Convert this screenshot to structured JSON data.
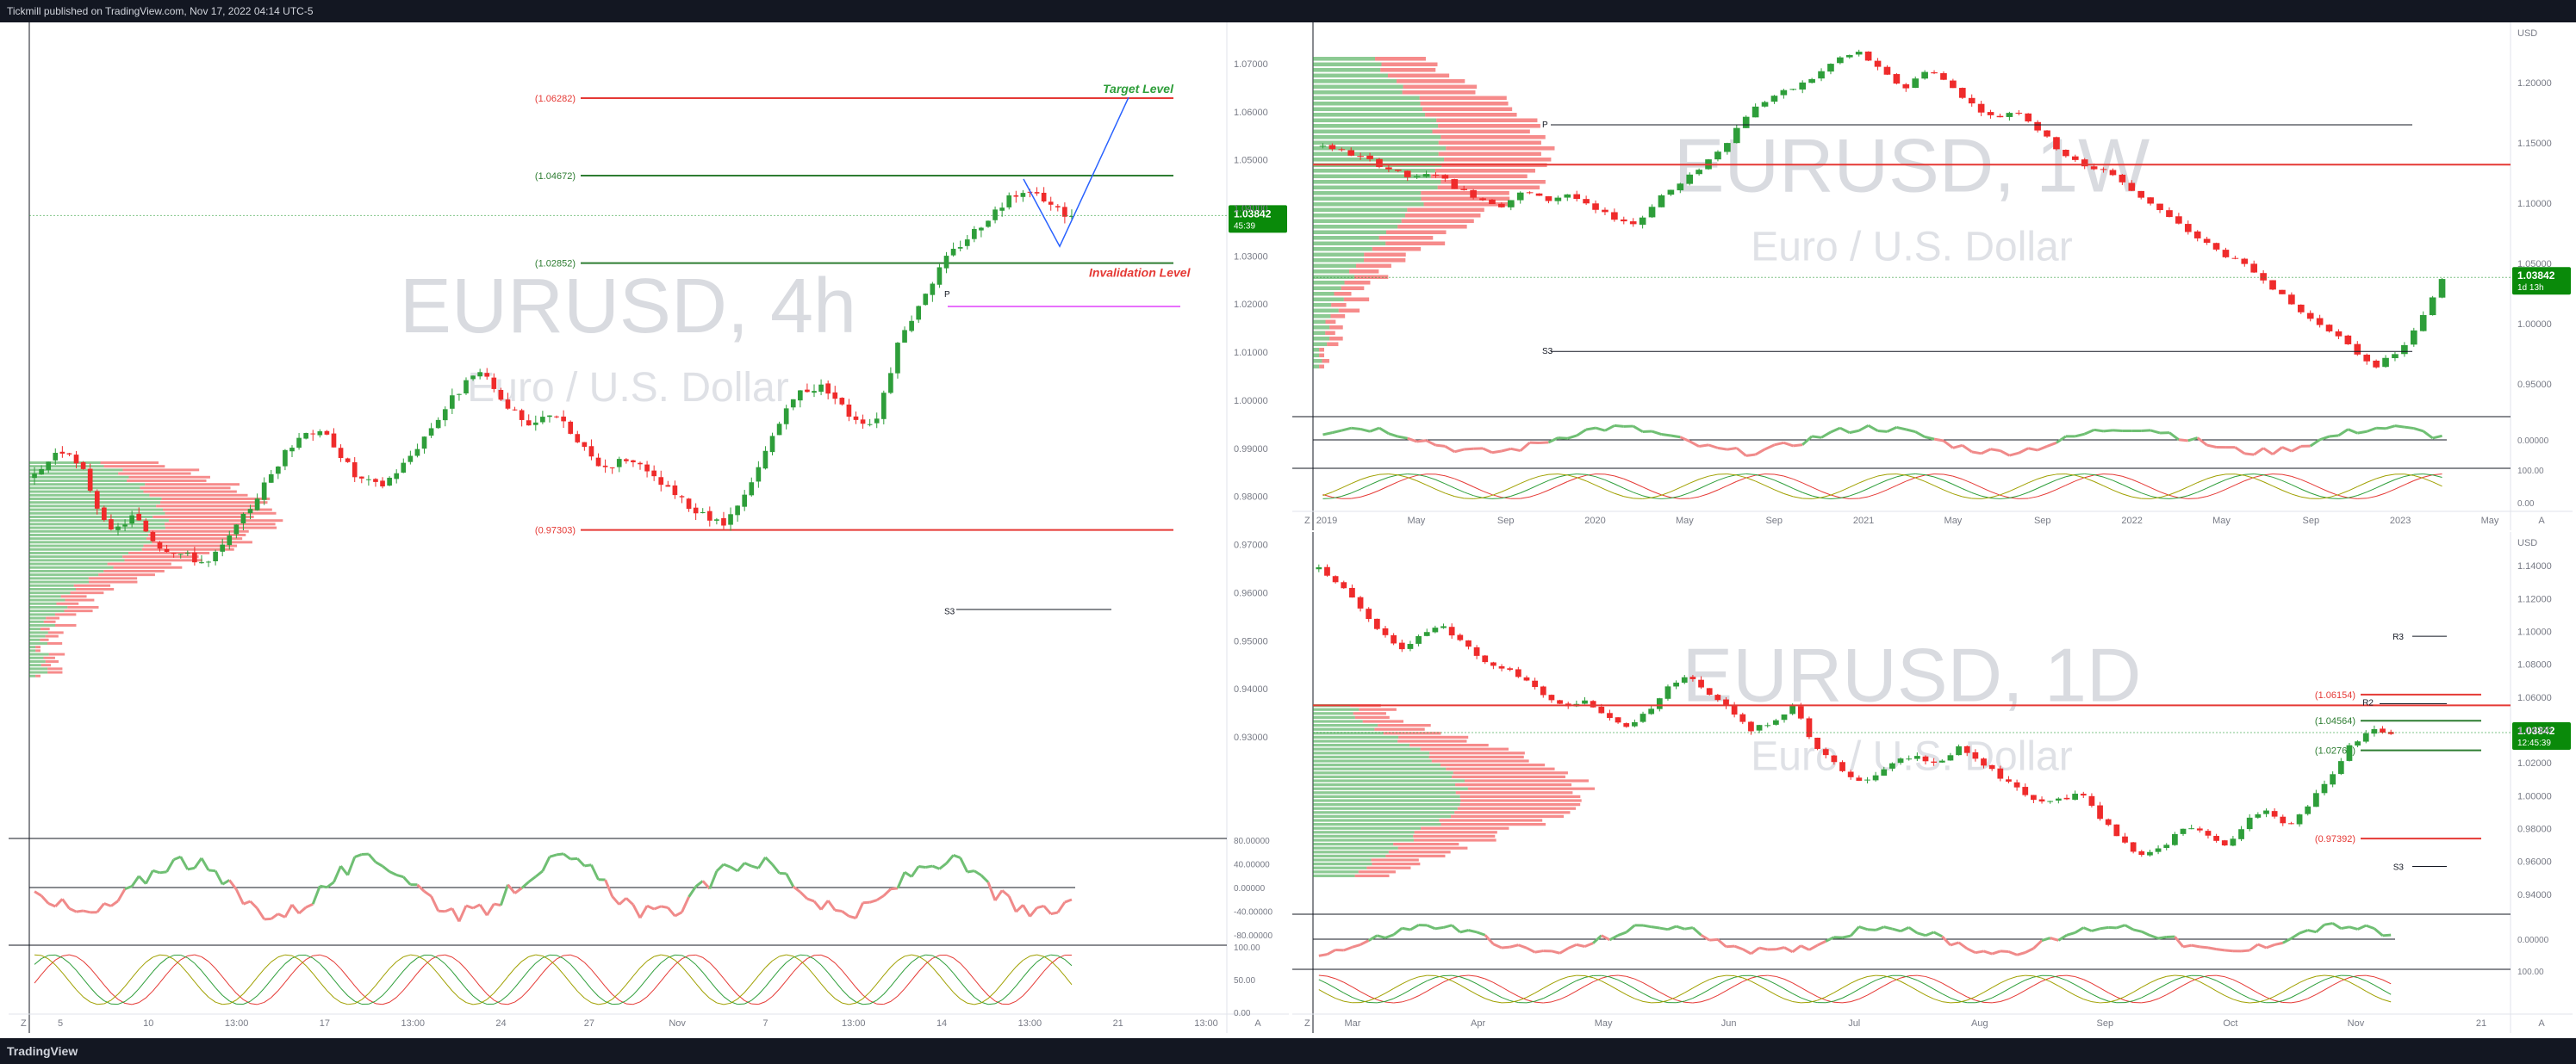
{
  "header": {
    "publisher": "Tickmill published on TradingView.com, Nov 17, 2022 04:14 UTC-5"
  },
  "footer": {
    "logo": "TradingView"
  },
  "colors": {
    "up": "#2e9e3a",
    "down": "#ef2b2b",
    "red_line": "#e53935",
    "green_line": "#2e7d32",
    "blue_path": "#2962ff",
    "badge": "#0a8a0a",
    "pivot": "#131722"
  },
  "charts": {
    "h4": {
      "watermark": "EURUSD, 4h",
      "subtitle": "Euro / U.S. Dollar",
      "price_badge": "1.03842",
      "countdown": "45:39",
      "target_label": "Target Level",
      "invalidation_label": "Invalidation Level",
      "pivot_p": "P",
      "pivot_s3": "S3",
      "price_scale": [
        "1.07000",
        "1.06000",
        "1.05000",
        "1.04000",
        "1.03000",
        "1.02000",
        "1.01000",
        "1.00000",
        "0.99000",
        "0.98000",
        "0.97000",
        "0.96000",
        "0.95000",
        "0.94000",
        "0.93000"
      ],
      "osc_scale": [
        "80.00000",
        "40.00000",
        "0.00000",
        "-40.00000",
        "-80.00000"
      ],
      "stoch_scale": [
        "100.00",
        "50.00",
        "0.00"
      ],
      "time_labels": [
        "5",
        "10",
        "13:00",
        "17",
        "13:00",
        "24",
        "27",
        "Nov",
        "7",
        "13:00",
        "14",
        "13:00",
        "21",
        "13:00"
      ],
      "axis_corner": "A",
      "z_button": "Z"
    },
    "w1": {
      "watermark": "EURUSD, 1W",
      "subtitle": "Euro / U.S. Dollar",
      "currency": "USD",
      "price_badge": "1.03842",
      "countdown": "1d 13h",
      "pivot_p": "P",
      "pivot_s3": "S3",
      "price_scale": [
        "1.20000",
        "1.15000",
        "1.10000",
        "1.05000",
        "1.00000",
        "0.95000"
      ],
      "osc_scale": [
        "0.00000"
      ],
      "stoch_scale": [
        "100.00",
        "0.00"
      ],
      "time_labels": [
        "2019",
        "May",
        "Sep",
        "2020",
        "May",
        "Sep",
        "2021",
        "May",
        "Sep",
        "2022",
        "May",
        "Sep",
        "2023",
        "May"
      ],
      "axis_corner": "A",
      "z_button": "Z"
    },
    "d1": {
      "watermark": "EURUSD, 1D",
      "subtitle": "Euro / U.S. Dollar",
      "currency": "USD",
      "price_badge": "1.03842",
      "countdown": "12:45:39",
      "pivot_r3": "R3",
      "pivot_r2": "R2",
      "pivot_s3": "S3",
      "price_scale": [
        "1.14000",
        "1.12000",
        "1.10000",
        "1.08000",
        "1.06000",
        "1.04000",
        "1.02000",
        "1.00000",
        "0.98000",
        "0.96000",
        "0.94000"
      ],
      "osc_scale": [
        "0.00000"
      ],
      "stoch_scale": [
        "100.00"
      ],
      "time_labels": [
        "Mar",
        "Apr",
        "May",
        "Jun",
        "Jul",
        "Aug",
        "Sep",
        "Oct",
        "Nov",
        "21"
      ],
      "axis_corner": "A",
      "z_button": "Z"
    }
  },
  "chart_data": [
    {
      "type": "candlestick",
      "title": "EURUSD, 4h",
      "ylim": [
        0.93,
        1.075
      ],
      "last_price": 1.03842,
      "levels": [
        {
          "label": "(1.06282)",
          "value": 1.06282,
          "color": "#e53935"
        },
        {
          "label": "(1.04672)",
          "value": 1.04672,
          "color": "#2e7d32"
        },
        {
          "label": "(1.02852)",
          "value": 1.02852,
          "color": "#2e7d32"
        },
        {
          "label": "(0.97303)",
          "value": 0.97303,
          "color": "#e53935"
        }
      ],
      "close_path": [
        0.984,
        0.99,
        0.985,
        0.972,
        0.976,
        0.97,
        0.968,
        0.966,
        0.972,
        0.98,
        0.988,
        0.994,
        0.992,
        0.984,
        0.982,
        0.987,
        0.994,
        1.001,
        1.006,
        1.0,
        0.994,
        0.998,
        0.991,
        0.986,
        0.988,
        0.984,
        0.98,
        0.976,
        0.974,
        0.982,
        0.994,
        1.002,
        1.003,
        0.997,
        0.995,
        1.012,
        1.022,
        1.03,
        1.035,
        1.04,
        1.044,
        1.041,
        1.038
      ]
    },
    {
      "type": "candlestick",
      "title": "EURUSD, 1W",
      "ylim": [
        0.93,
        1.24
      ],
      "last_price": 1.03842,
      "close_path": [
        1.148,
        1.142,
        1.136,
        1.128,
        1.12,
        1.125,
        1.112,
        1.104,
        1.098,
        1.11,
        1.102,
        1.108,
        1.095,
        1.088,
        1.082,
        1.105,
        1.116,
        1.132,
        1.15,
        1.175,
        1.188,
        1.195,
        1.205,
        1.22,
        1.225,
        1.208,
        1.195,
        1.212,
        1.198,
        1.182,
        1.17,
        1.178,
        1.16,
        1.142,
        1.13,
        1.128,
        1.112,
        1.1,
        1.085,
        1.072,
        1.06,
        1.05,
        1.038,
        1.02,
        1.005,
        0.995,
        0.978,
        0.965,
        0.975,
        1.0,
        1.038
      ]
    },
    {
      "type": "candlestick",
      "title": "EURUSD, 1D",
      "ylim": [
        0.93,
        1.15
      ],
      "last_price": 1.03842,
      "levels": [
        {
          "label": "(1.06154)",
          "value": 1.06154,
          "color": "#e53935"
        },
        {
          "label": "(1.04564)",
          "value": 1.04564,
          "color": "#2e7d32"
        },
        {
          "label": "(1.02765)",
          "value": 1.02765,
          "color": "#2e7d32"
        },
        {
          "label": "(0.97392)",
          "value": 0.97392,
          "color": "#e53935"
        }
      ],
      "close_path": [
        1.138,
        1.128,
        1.115,
        1.1,
        1.09,
        1.098,
        1.104,
        1.092,
        1.082,
        1.078,
        1.07,
        1.06,
        1.055,
        1.058,
        1.048,
        1.04,
        1.052,
        1.068,
        1.072,
        1.062,
        1.052,
        1.04,
        1.045,
        1.055,
        1.032,
        1.02,
        1.008,
        1.012,
        1.022,
        1.025,
        1.018,
        1.03,
        1.022,
        1.012,
        1.003,
        0.995,
        0.998,
        1.002,
        0.985,
        0.972,
        0.962,
        0.97,
        0.982,
        0.978,
        0.968,
        0.985,
        0.99,
        0.98,
        0.995,
        1.01,
        1.03,
        1.04,
        1.038
      ]
    }
  ]
}
